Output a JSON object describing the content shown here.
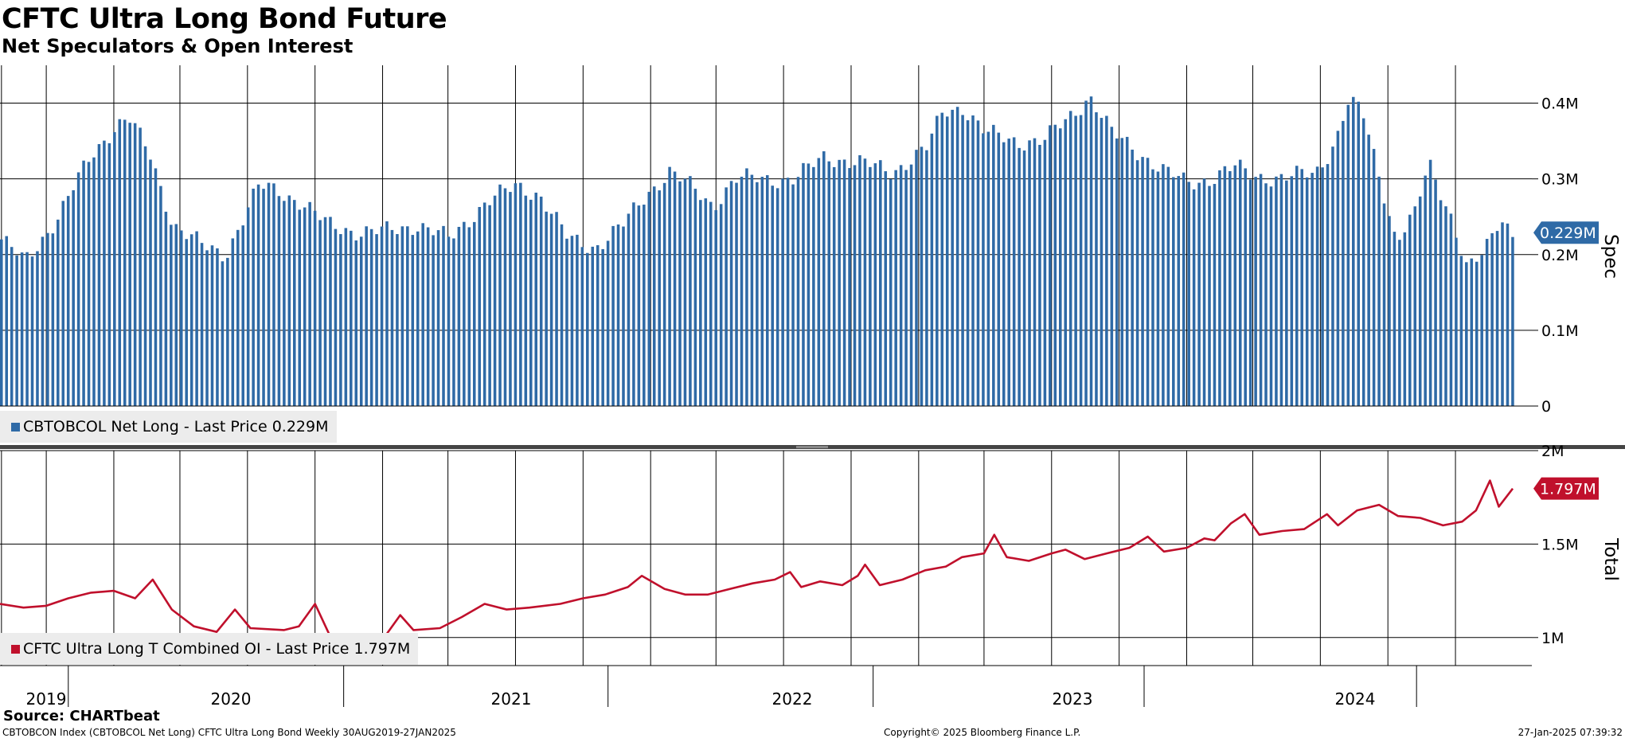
{
  "title": "CFTC Ultra Long Bond Future",
  "subtitle": "Net Speculators & Open Interest",
  "footer": {
    "source": "Source: CHARTbeat",
    "left": "CBTOBCON Index (CBTOBCOL Net Long) CFTC Ultra Long Bond  Weekly 30AUG2019-27JAN2025",
    "center": "Copyright© 2025 Bloomberg Finance L.P.",
    "right": "27-Jan-2025 07:39:32"
  },
  "colors": {
    "bar": "#2f6aa6",
    "line": "#c0102c",
    "label_blue": "#2f6aa6",
    "label_red": "#c0102c"
  },
  "chart_data": [
    {
      "type": "bar",
      "panel": "top",
      "axis_title": "Spec",
      "ylim": [
        0,
        0.45
      ],
      "yticks": [
        0,
        0.1,
        0.2,
        0.3,
        0.4
      ],
      "ytick_labels": [
        "0",
        "0.1M",
        "0.2M",
        "0.3M",
        "0.4M"
      ],
      "last_value_label": "0.229M",
      "legend": "CBTOBCOL Net Long - Last Price 0.229M",
      "series": [
        {
          "name": "CBTOBCOL Net Long",
          "x_range": [
            "2019-08-30",
            "2025-01-27"
          ],
          "anchors": [
            [
              "2019-08-30",
              0.22
            ],
            [
              "2019-10-01",
              0.19
            ],
            [
              "2019-11-15",
              0.25
            ],
            [
              "2019-12-30",
              0.33
            ],
            [
              "2020-02-01",
              0.37
            ],
            [
              "2020-02-20",
              0.38
            ],
            [
              "2020-03-20",
              0.33
            ],
            [
              "2020-04-20",
              0.24
            ],
            [
              "2020-06-01",
              0.21
            ],
            [
              "2020-06-30",
              0.2
            ],
            [
              "2020-07-20",
              0.24
            ],
            [
              "2020-08-15",
              0.29
            ],
            [
              "2020-09-10",
              0.285
            ],
            [
              "2020-10-10",
              0.27
            ],
            [
              "2020-11-15",
              0.24
            ],
            [
              "2020-12-30",
              0.23
            ],
            [
              "2021-02-01",
              0.23
            ],
            [
              "2021-03-20",
              0.24
            ],
            [
              "2021-05-01",
              0.22
            ],
            [
              "2021-06-20",
              0.27
            ],
            [
              "2021-08-01",
              0.29
            ],
            [
              "2021-09-01",
              0.28
            ],
            [
              "2021-10-10",
              0.22
            ],
            [
              "2021-11-15",
              0.21
            ],
            [
              "2021-12-25",
              0.24
            ],
            [
              "2022-01-25",
              0.28
            ],
            [
              "2022-02-25",
              0.31
            ],
            [
              "2022-03-25",
              0.29
            ],
            [
              "2022-04-25",
              0.265
            ],
            [
              "2022-05-25",
              0.3
            ],
            [
              "2022-06-25",
              0.3
            ],
            [
              "2022-08-15",
              0.3
            ],
            [
              "2022-09-25",
              0.33
            ],
            [
              "2022-11-15",
              0.32
            ],
            [
              "2022-12-25",
              0.31
            ],
            [
              "2023-02-10",
              0.34
            ],
            [
              "2023-03-05",
              0.39
            ],
            [
              "2023-04-01",
              0.395
            ],
            [
              "2023-05-01",
              0.36
            ],
            [
              "2023-06-15",
              0.35
            ],
            [
              "2023-07-20",
              0.35
            ],
            [
              "2023-09-01",
              0.39
            ],
            [
              "2023-09-20",
              0.41
            ],
            [
              "2023-10-20",
              0.36
            ],
            [
              "2023-11-20",
              0.34
            ],
            [
              "2023-12-30",
              0.31
            ],
            [
              "2024-01-30",
              0.295
            ],
            [
              "2024-03-01",
              0.3
            ],
            [
              "2024-04-05",
              0.315
            ],
            [
              "2024-05-01",
              0.305
            ],
            [
              "2024-06-10",
              0.3
            ],
            [
              "2024-07-25",
              0.31
            ],
            [
              "2024-08-20",
              0.35
            ],
            [
              "2024-09-05",
              0.4
            ],
            [
              "2024-09-25",
              0.39
            ],
            [
              "2024-10-20",
              0.3
            ],
            [
              "2024-11-10",
              0.22
            ],
            [
              "2024-12-05",
              0.25
            ],
            [
              "2024-12-25",
              0.32
            ],
            [
              "2025-01-25",
              0.25
            ],
            [
              "2025-02-15",
              0.18
            ],
            [
              "2025-03-10",
              0.2
            ],
            [
              "2025-04-01",
              0.25
            ],
            [
              "2025-04-20",
              0.229
            ]
          ]
        }
      ]
    },
    {
      "type": "line",
      "panel": "bottom",
      "axis_title": "Total",
      "ylim": [
        0.85,
        2.0
      ],
      "yticks": [
        1.0,
        1.5,
        2.0
      ],
      "ytick_labels": [
        "1M",
        "1.5M",
        "2M"
      ],
      "last_value_label": "1.797M",
      "legend": "CFTC Ultra Long T Combined OI - Last Price 1.797M",
      "series": [
        {
          "name": "CFTC Ultra Long T Combined OI",
          "points": [
            [
              "2019-08-30",
              1.18
            ],
            [
              "2019-10-01",
              1.16
            ],
            [
              "2019-11-01",
              1.17
            ],
            [
              "2019-12-01",
              1.21
            ],
            [
              "2020-01-01",
              1.24
            ],
            [
              "2020-02-01",
              1.25
            ],
            [
              "2020-03-01",
              1.21
            ],
            [
              "2020-03-25",
              1.31
            ],
            [
              "2020-04-20",
              1.15
            ],
            [
              "2020-05-20",
              1.06
            ],
            [
              "2020-06-20",
              1.03
            ],
            [
              "2020-07-15",
              1.15
            ],
            [
              "2020-08-05",
              1.05
            ],
            [
              "2020-09-20",
              1.04
            ],
            [
              "2020-10-10",
              1.06
            ],
            [
              "2020-11-01",
              1.18
            ],
            [
              "2020-11-20",
              1.02
            ],
            [
              "2020-12-20",
              1.0
            ],
            [
              "2021-01-20",
              0.99
            ],
            [
              "2021-02-05",
              1.01
            ],
            [
              "2021-02-25",
              1.12
            ],
            [
              "2021-03-15",
              1.04
            ],
            [
              "2021-04-20",
              1.05
            ],
            [
              "2021-05-20",
              1.11
            ],
            [
              "2021-06-20",
              1.18
            ],
            [
              "2021-07-20",
              1.15
            ],
            [
              "2021-08-20",
              1.16
            ],
            [
              "2021-10-01",
              1.18
            ],
            [
              "2021-11-01",
              1.21
            ],
            [
              "2021-12-01",
              1.23
            ],
            [
              "2022-01-01",
              1.27
            ],
            [
              "2022-01-20",
              1.33
            ],
            [
              "2022-02-20",
              1.26
            ],
            [
              "2022-03-20",
              1.23
            ],
            [
              "2022-04-20",
              1.23
            ],
            [
              "2022-05-20",
              1.26
            ],
            [
              "2022-06-20",
              1.29
            ],
            [
              "2022-07-20",
              1.31
            ],
            [
              "2022-08-10",
              1.35
            ],
            [
              "2022-08-25",
              1.27
            ],
            [
              "2022-09-20",
              1.3
            ],
            [
              "2022-10-20",
              1.28
            ],
            [
              "2022-11-10",
              1.33
            ],
            [
              "2022-11-20",
              1.39
            ],
            [
              "2022-12-10",
              1.28
            ],
            [
              "2023-01-10",
              1.31
            ],
            [
              "2023-02-10",
              1.36
            ],
            [
              "2023-03-10",
              1.38
            ],
            [
              "2023-04-01",
              1.43
            ],
            [
              "2023-05-01",
              1.45
            ],
            [
              "2023-05-15",
              1.55
            ],
            [
              "2023-06-01",
              1.43
            ],
            [
              "2023-07-01",
              1.41
            ],
            [
              "2023-08-01",
              1.45
            ],
            [
              "2023-08-20",
              1.47
            ],
            [
              "2023-09-15",
              1.42
            ],
            [
              "2023-10-15",
              1.45
            ],
            [
              "2023-11-15",
              1.48
            ],
            [
              "2023-12-10",
              1.54
            ],
            [
              "2024-01-01",
              1.46
            ],
            [
              "2024-02-01",
              1.48
            ],
            [
              "2024-02-25",
              1.53
            ],
            [
              "2024-03-10",
              1.52
            ],
            [
              "2024-04-01",
              1.61
            ],
            [
              "2024-04-20",
              1.66
            ],
            [
              "2024-05-10",
              1.55
            ],
            [
              "2024-06-10",
              1.57
            ],
            [
              "2024-07-10",
              1.58
            ],
            [
              "2024-08-10",
              1.66
            ],
            [
              "2024-08-25",
              1.6
            ],
            [
              "2024-09-20",
              1.68
            ],
            [
              "2024-10-20",
              1.71
            ],
            [
              "2024-11-15",
              1.65
            ],
            [
              "2024-12-15",
              1.64
            ],
            [
              "2025-01-15",
              1.6
            ],
            [
              "2025-02-10",
              1.62
            ],
            [
              "2025-03-01",
              1.68
            ],
            [
              "2025-03-20",
              1.84
            ],
            [
              "2025-04-01",
              1.7
            ],
            [
              "2025-04-20",
              1.797
            ]
          ]
        }
      ]
    }
  ],
  "x_axis": {
    "year_labels": [
      "2019",
      "2020",
      "2021",
      "2022",
      "2023",
      "2024"
    ],
    "minor_gridlines": [
      "2019-09-01",
      "2019-11-01",
      "2020-02-01",
      "2020-05-01",
      "2020-08-01",
      "2020-11-01",
      "2021-02-01",
      "2021-05-01",
      "2021-08-01",
      "2021-11-01",
      "2022-02-01",
      "2022-05-01",
      "2022-08-01",
      "2022-11-01",
      "2023-02-01",
      "2023-05-01",
      "2023-08-01",
      "2023-11-01",
      "2024-02-01",
      "2024-05-01",
      "2024-08-01",
      "2024-11-01",
      "2025-02-01"
    ],
    "year_separators": [
      "2019-12-01",
      "2020-12-10",
      "2021-12-05",
      "2022-12-01",
      "2023-12-05",
      "2024-12-10"
    ]
  }
}
